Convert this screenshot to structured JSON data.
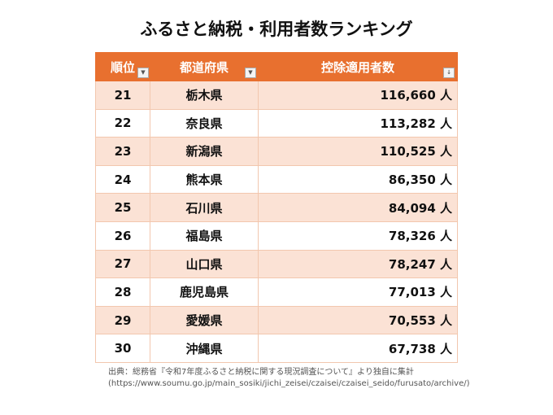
{
  "title": "ふるさと納税・利用者数ランキング",
  "headers": [
    "順位",
    "都道府県",
    "控除適用者数"
  ],
  "icons": {
    "filter": "dropdown-filter-icon",
    "sort": "sort-descending-icon"
  },
  "colors": {
    "header": "#e8702f",
    "stripe": "#fbe2d5"
  },
  "rows": [
    [
      "21",
      "栃木県",
      "116,660 人"
    ],
    [
      "22",
      "奈良県",
      "113,282 人"
    ],
    [
      "23",
      "新潟県",
      "110,525 人"
    ],
    [
      "24",
      "熊本県",
      "86,350 人"
    ],
    [
      "25",
      "石川県",
      "84,094 人"
    ],
    [
      "26",
      "福島県",
      "78,326 人"
    ],
    [
      "27",
      "山口県",
      "78,247 人"
    ],
    [
      "28",
      "鹿児島県",
      "77,013 人"
    ],
    [
      "29",
      "愛媛県",
      "70,553 人"
    ],
    [
      "30",
      "沖縄県",
      "67,738 人"
    ]
  ],
  "source": [
    "出典：総務省『令和7年度ふるさと納税に関する現況調査について』より独自に集計",
    "(https://www.soumu.go.jp/main_sosiki/jichi_zeisei/czaisei/czaisei_seido/furusato/archive/)"
  ]
}
